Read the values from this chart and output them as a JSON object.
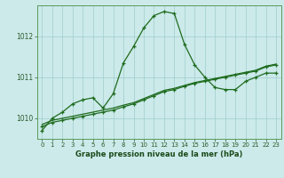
{
  "hours": [
    0,
    1,
    2,
    3,
    4,
    5,
    6,
    7,
    8,
    9,
    10,
    11,
    12,
    13,
    14,
    15,
    16,
    17,
    18,
    19,
    20,
    21,
    22,
    23
  ],
  "line1": [
    1009.7,
    1010.0,
    1010.15,
    1010.35,
    1010.45,
    1010.5,
    1010.25,
    1010.6,
    1011.35,
    1011.75,
    1012.2,
    1012.5,
    1012.6,
    1012.55,
    1011.8,
    1011.3,
    1011.0,
    1010.75,
    1010.7,
    1010.7,
    1010.9,
    1011.0,
    1011.1,
    1011.1
  ],
  "line2": [
    1009.8,
    1009.9,
    1009.95,
    1010.0,
    1010.05,
    1010.1,
    1010.15,
    1010.2,
    1010.28,
    1010.35,
    1010.45,
    1010.55,
    1010.65,
    1010.7,
    1010.78,
    1010.85,
    1010.9,
    1010.95,
    1011.0,
    1011.05,
    1011.1,
    1011.15,
    1011.25,
    1011.3
  ],
  "line3": [
    1009.85,
    1009.95,
    1010.0,
    1010.05,
    1010.1,
    1010.15,
    1010.2,
    1010.25,
    1010.32,
    1010.38,
    1010.48,
    1010.58,
    1010.68,
    1010.73,
    1010.8,
    1010.87,
    1010.92,
    1010.97,
    1011.02,
    1011.07,
    1011.12,
    1011.17,
    1011.27,
    1011.32
  ],
  "ylim_min": 1009.5,
  "ylim_max": 1012.75,
  "yticks": [
    1010,
    1011,
    1012
  ],
  "xlabel": "Graphe pression niveau de la mer (hPa)",
  "line_color": "#1e6b1e",
  "bg_color": "#cceaea",
  "grid_color": "#a0cccc",
  "spine_color": "#5a9a5a",
  "tick_color": "#2a5a2a",
  "label_color": "#1a4a1a"
}
